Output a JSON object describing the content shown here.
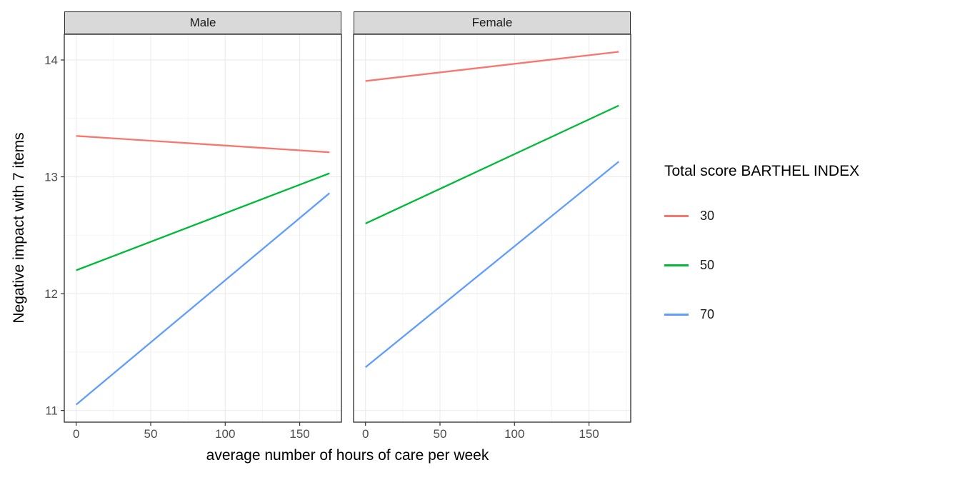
{
  "chart_data": {
    "type": "line",
    "xlabel": "average number of hours of care per week",
    "ylabel": "Negative impact with 7 items",
    "xticks": [
      0,
      50,
      100,
      150
    ],
    "yticks": [
      11,
      12,
      13,
      14
    ],
    "xlim": [
      -8,
      178
    ],
    "ylim": [
      10.9,
      14.22
    ],
    "grid": true,
    "facets": [
      {
        "label": "Male",
        "series": [
          {
            "name": "30",
            "color": "#F8766D",
            "x": [
              0,
              170
            ],
            "y": [
              13.35,
              13.21
            ]
          },
          {
            "name": "50",
            "color": "#00BA38",
            "x": [
              0,
              170
            ],
            "y": [
              12.2,
              13.03
            ]
          },
          {
            "name": "70",
            "color": "#619CFF",
            "x": [
              0,
              170
            ],
            "y": [
              11.05,
              12.86
            ]
          }
        ]
      },
      {
        "label": "Female",
        "series": [
          {
            "name": "30",
            "color": "#F8766D",
            "x": [
              0,
              170
            ],
            "y": [
              13.82,
              14.07
            ]
          },
          {
            "name": "50",
            "color": "#00BA38",
            "x": [
              0,
              170
            ],
            "y": [
              12.6,
              13.61
            ]
          },
          {
            "name": "70",
            "color": "#619CFF",
            "x": [
              0,
              170
            ],
            "y": [
              11.37,
              13.13
            ]
          }
        ]
      }
    ],
    "legend": {
      "title": "Total score BARTHEL INDEX",
      "position": "right",
      "entries": [
        {
          "label": "30",
          "color": "#F8766D"
        },
        {
          "label": "50",
          "color": "#00BA38"
        },
        {
          "label": "70",
          "color": "#619CFF"
        }
      ]
    }
  }
}
